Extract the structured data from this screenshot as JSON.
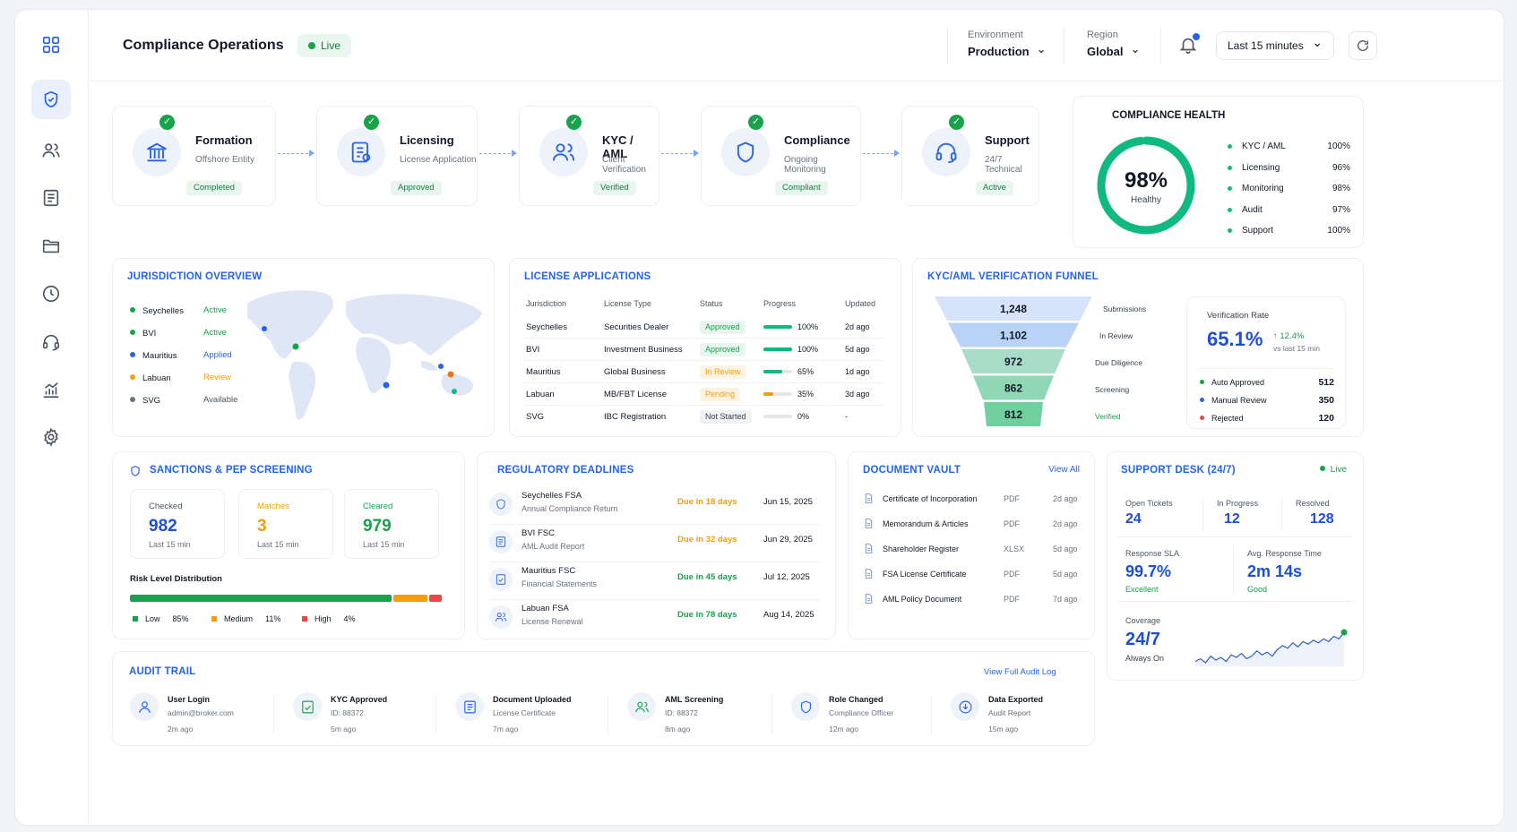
{
  "header": {
    "title": "Compliance Operations",
    "live": "Live",
    "environment": {
      "label": "Environment",
      "value": "Production"
    },
    "region": {
      "label": "Region",
      "value": "Global"
    },
    "time_range": "Last 15 minutes"
  },
  "sidebar": {
    "items": [
      "dashboard-grid-icon",
      "shield-icon",
      "users-icon",
      "document-icon",
      "folder-icon",
      "clock-icon",
      "headset-icon",
      "chart-icon",
      "gear-icon"
    ],
    "active": 1
  },
  "pipeline": [
    {
      "name": "Formation",
      "sub": "Offshore Entity",
      "status": "Completed",
      "icon": "bank-icon"
    },
    {
      "name": "Licensing",
      "sub": "License Application",
      "status": "Approved",
      "icon": "document-badge-icon"
    },
    {
      "name": "KYC / AML",
      "sub": "Client Verification",
      "status": "Verified",
      "icon": "users-icon"
    },
    {
      "name": "Compliance",
      "sub": "Ongoing Monitoring",
      "status": "Compliant",
      "icon": "shield-icon"
    },
    {
      "name": "Support",
      "sub": "24/7 Technical",
      "status": "Active",
      "icon": "headset-icon"
    }
  ],
  "health": {
    "title": "COMPLIANCE HEALTH",
    "value": "98%",
    "fraction": 0.98,
    "label": "Healthy",
    "items": [
      {
        "name": "KYC / AML",
        "value": "100%"
      },
      {
        "name": "Licensing",
        "value": "96%"
      },
      {
        "name": "Monitoring",
        "value": "98%"
      },
      {
        "name": "Audit",
        "value": "97%"
      },
      {
        "name": "Support",
        "value": "100%"
      }
    ]
  },
  "jurisdiction": {
    "title": "JURISDICTION OVERVIEW",
    "items": [
      {
        "name": "Seychelles",
        "status": "Active",
        "color": "#16a34a",
        "status_color": "#16a34a"
      },
      {
        "name": "BVI",
        "status": "Active",
        "color": "#16a34a",
        "status_color": "#16a34a"
      },
      {
        "name": "Mauritius",
        "status": "Applied",
        "color": "#2563eb",
        "status_color": "#2563eb"
      },
      {
        "name": "Labuan",
        "status": "Review",
        "color": "#f59e0b",
        "status_color": "#f59e0b"
      },
      {
        "name": "SVG",
        "status": "Available",
        "color": "#6b7280",
        "status_color": "#4b5563"
      }
    ]
  },
  "licenses": {
    "title": "LICENSE APPLICATIONS",
    "headers": [
      "Jurisdiction",
      "License Type",
      "Status",
      "Progress",
      "Updated"
    ],
    "rows": [
      {
        "jurisdiction": "Seychelles",
        "type": "Securities Dealer",
        "status": "Approved",
        "progress": "100%",
        "pct": 100,
        "updated": "2d ago",
        "color": "#16a34a",
        "bg": "#e8f6ef"
      },
      {
        "jurisdiction": "BVI",
        "type": "Investment Business",
        "status": "Approved",
        "progress": "100%",
        "pct": 100,
        "updated": "5d ago",
        "color": "#16a34a",
        "bg": "#e8f6ef"
      },
      {
        "jurisdiction": "Mauritius",
        "type": "Global Business",
        "status": "In Review",
        "progress": "65%",
        "pct": 65,
        "updated": "1d ago",
        "color": "#f59e0b",
        "bg": "#fef3e2"
      },
      {
        "jurisdiction": "Labuan",
        "type": "MB/FBT License",
        "status": "Pending",
        "progress": "35%",
        "pct": 35,
        "updated": "3d ago",
        "color": "#f59e0b",
        "bg": "#fef3e2"
      },
      {
        "jurisdiction": "SVG",
        "type": "IBC Registration",
        "status": "Not Started",
        "progress": "0%",
        "pct": 0,
        "updated": "-",
        "color": "#374151",
        "bg": "#f1f2f4"
      }
    ]
  },
  "funnel": {
    "title": "KYC/AML VERIFICATION FUNNEL",
    "stages": [
      {
        "value": "1,248",
        "label": "Submissions"
      },
      {
        "value": "1,102",
        "label": "In Review"
      },
      {
        "value": "972",
        "label": "Due Diligence"
      },
      {
        "value": "862",
        "label": "Screening"
      },
      {
        "value": "812",
        "label": "Verified"
      }
    ],
    "rate_label": "Verification Rate",
    "rate": "65.1%",
    "change": "↑ 12.4%",
    "change_sub": "vs last 15 min",
    "breakdown": [
      {
        "name": "Auto Approved",
        "value": "512",
        "color": "#16a34a"
      },
      {
        "name": "Manual Review",
        "value": "350",
        "color": "#2563eb"
      },
      {
        "name": "Rejected",
        "value": "120",
        "color": "#ef4444"
      }
    ]
  },
  "sanctions": {
    "title": "SANCTIONS & PEP SCREENING",
    "stats": [
      {
        "label": "Checked",
        "value": "982",
        "sub": "Last 15 min",
        "color": "#1d4ed8",
        "label_color": "#4b5563"
      },
      {
        "label": "Matches",
        "value": "3",
        "sub": "Last 15 min",
        "color": "#f59e0b",
        "label_color": "#f59e0b"
      },
      {
        "label": "Cleared",
        "value": "979",
        "sub": "Last 15 min",
        "color": "#16a34a",
        "label_color": "#16a34a"
      }
    ],
    "risk_title": "Risk Level Distribution",
    "risk": [
      {
        "name": "Low",
        "value": "85%",
        "pct": 85,
        "color": "#16a34a"
      },
      {
        "name": "Medium",
        "value": "11%",
        "pct": 11,
        "color": "#f59e0b"
      },
      {
        "name": "High",
        "value": "4%",
        "pct": 4,
        "color": "#ef4444"
      }
    ]
  },
  "deadlines": {
    "title": "REGULATORY DEADLINES",
    "items": [
      {
        "name": "Seychelles FSA",
        "desc": "Annual Compliance Return",
        "due": "Due in 18 days",
        "date": "Jun 15, 2025",
        "color": "#f59e0b"
      },
      {
        "name": "BVI FSC",
        "desc": "AML Audit Report",
        "due": "Due in 32 days",
        "date": "Jun 29, 2025",
        "color": "#f59e0b"
      },
      {
        "name": "Mauritius FSC",
        "desc": "Financial Statements",
        "due": "Due in 45 days",
        "date": "Jul 12, 2025",
        "color": "#16a34a"
      },
      {
        "name": "Labuan FSA",
        "desc": "License Renewal",
        "due": "Due in 78 days",
        "date": "Aug 14, 2025",
        "color": "#16a34a"
      }
    ]
  },
  "vault": {
    "title": "DOCUMENT VAULT",
    "view_all": "View All",
    "docs": [
      {
        "name": "Certificate of Incorporation",
        "type": "PDF",
        "age": "2d ago"
      },
      {
        "name": "Memorandum & Articles",
        "type": "PDF",
        "age": "2d ago"
      },
      {
        "name": "Shareholder Register",
        "type": "XLSX",
        "age": "5d ago"
      },
      {
        "name": "FSA License Certificate",
        "type": "PDF",
        "age": "5d ago"
      },
      {
        "name": "AML Policy Document",
        "type": "PDF",
        "age": "7d ago"
      }
    ]
  },
  "support": {
    "title": "SUPPORT DESK (24/7)",
    "live": "Live",
    "tickets": [
      {
        "label": "Open Tickets",
        "value": "24"
      },
      {
        "label": "In Progress",
        "value": "12"
      },
      {
        "label": "Resolved",
        "value": "128"
      }
    ],
    "sla": {
      "label": "Response SLA",
      "value": "99.7%",
      "sub": "Excellent"
    },
    "response": {
      "label": "Avg. Response Time",
      "value": "2m 14s",
      "sub": "Good"
    },
    "coverage": {
      "label": "Coverage",
      "value": "24/7",
      "sub": "Always On"
    },
    "spark": [
      10,
      12,
      9,
      14,
      11,
      13,
      10,
      15,
      13,
      16,
      12,
      14,
      18,
      15,
      17,
      14,
      19,
      22,
      20,
      24,
      21,
      25,
      23,
      26,
      24,
      27,
      25,
      29,
      27,
      32
    ]
  },
  "audit": {
    "title": "AUDIT TRAIL",
    "view_all": "View Full Audit Log",
    "items": [
      {
        "title": "User Login",
        "desc": "admin@broker.com",
        "time": "2m ago",
        "icon": "user-icon",
        "color": "#2563eb"
      },
      {
        "title": "KYC Approved",
        "desc": "ID: 88372",
        "time": "5m ago",
        "icon": "approved-doc-icon",
        "color": "#16a34a"
      },
      {
        "title": "Document Uploaded",
        "desc": "License Certificate",
        "time": "7m ago",
        "icon": "upload-doc-icon",
        "color": "#2563eb"
      },
      {
        "title": "AML Screening",
        "desc": "ID: 88372",
        "time": "8m ago",
        "icon": "users-icon",
        "color": "#16a34a"
      },
      {
        "title": "Role Changed",
        "desc": "Compliance Officer",
        "time": "12m ago",
        "icon": "shield-icon",
        "color": "#2563eb"
      },
      {
        "title": "Data Exported",
        "desc": "Audit Report",
        "time": "15m ago",
        "icon": "download-icon",
        "color": "#2563eb"
      }
    ]
  }
}
